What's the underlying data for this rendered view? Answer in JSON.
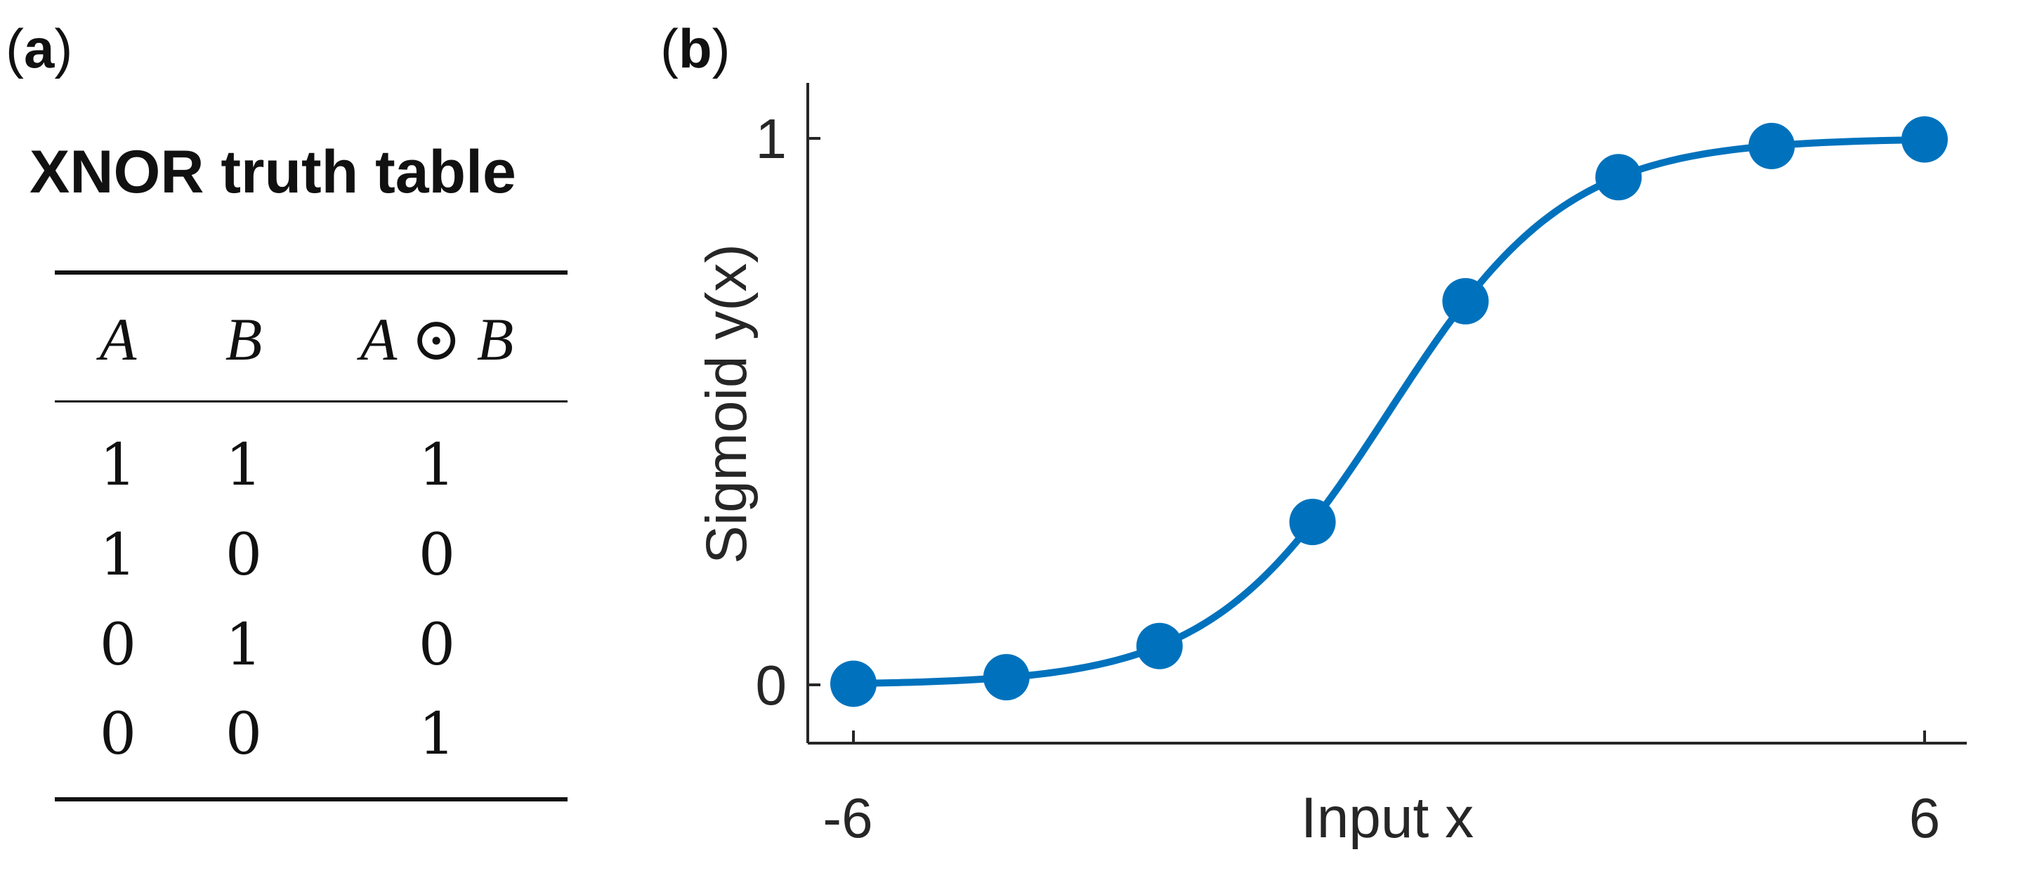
{
  "panel_a": {
    "label_open": "(",
    "label_letter": "a",
    "label_close": ")",
    "title": "XNOR truth table",
    "columns": [
      "A",
      "B",
      "A ⊙ B"
    ],
    "rows": [
      [
        "1",
        "1",
        "1"
      ],
      [
        "1",
        "0",
        "0"
      ],
      [
        "0",
        "1",
        "0"
      ],
      [
        "0",
        "0",
        "1"
      ]
    ]
  },
  "panel_b": {
    "label_open": "(",
    "label_letter": "b",
    "label_close": ")"
  },
  "chart_data": {
    "type": "line",
    "function": "sigmoid",
    "xlabel": "Input x",
    "ylabel": "Sigmoid y(x)",
    "xlim": [
      -6,
      6
    ],
    "ylim": [
      0,
      1
    ],
    "xticks": [
      -6,
      6
    ],
    "xtick_labels": [
      "-6",
      "6"
    ],
    "yticks": [
      0,
      1
    ],
    "ytick_labels": [
      "0",
      "1"
    ],
    "grid": false,
    "line_color": "#0072bd",
    "marker_color": "#0072bd",
    "points": [
      {
        "x": -6,
        "y": 0.002
      },
      {
        "x": -4.286,
        "y": 0.014
      },
      {
        "x": -2.571,
        "y": 0.071
      },
      {
        "x": -0.857,
        "y": 0.298
      },
      {
        "x": 0.857,
        "y": 0.702
      },
      {
        "x": 2.571,
        "y": 0.929
      },
      {
        "x": 4.286,
        "y": 0.986
      },
      {
        "x": 6,
        "y": 0.998
      }
    ]
  }
}
